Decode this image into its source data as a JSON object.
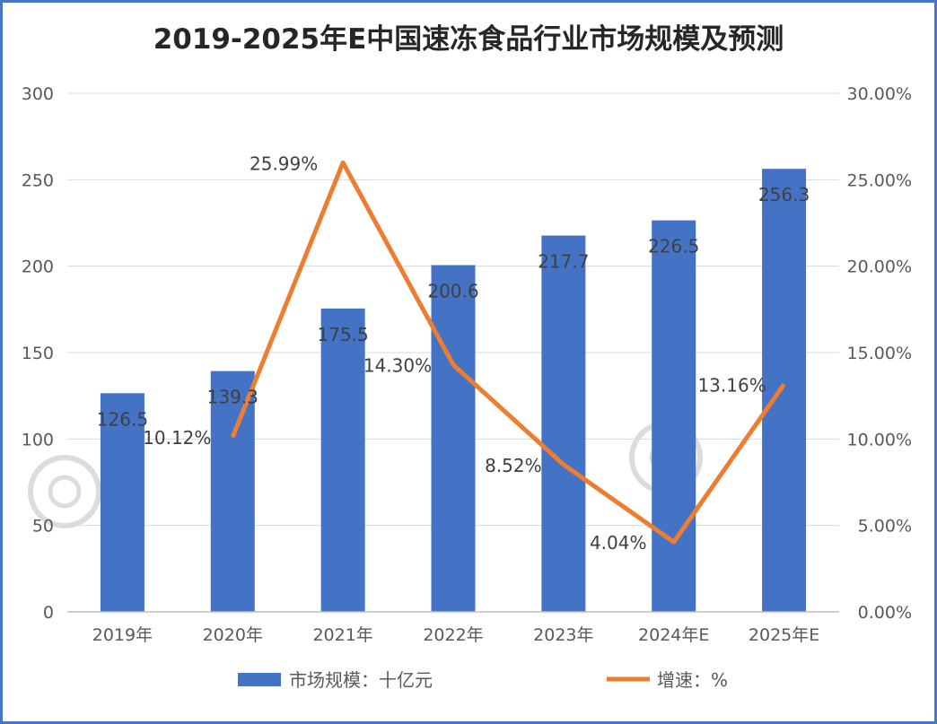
{
  "chart_data": {
    "type": "bar",
    "title": "2019-2025年E中国速冻食品行业市场规模及预测",
    "categories": [
      "2019年",
      "2020年",
      "2021年",
      "2022年",
      "2023年",
      "2024年E",
      "2025年E"
    ],
    "series": [
      {
        "name": "市场规模：十亿元",
        "type": "bar",
        "axis": "left",
        "color": "#4472c4",
        "values": [
          126.5,
          139.3,
          175.5,
          200.6,
          217.7,
          226.5,
          256.3
        ],
        "labels": [
          "126.5",
          "139.3",
          "175.5",
          "200.6",
          "217.7",
          "226.5",
          "256.3"
        ]
      },
      {
        "name": "增速：%",
        "type": "line",
        "axis": "right",
        "color": "#ed7d31",
        "values": [
          null,
          10.12,
          25.99,
          14.3,
          8.52,
          4.04,
          13.16
        ],
        "labels": [
          "",
          "10.12%",
          "25.99%",
          "14.30%",
          "8.52%",
          "4.04%",
          "13.16%"
        ]
      }
    ],
    "y_left": {
      "min": 0,
      "max": 300,
      "ticks": [
        "0",
        "50",
        "100",
        "150",
        "200",
        "250",
        "300"
      ]
    },
    "y_right": {
      "min": 0,
      "max": 30,
      "ticks": [
        "0.00%",
        "5.00%",
        "10.00%",
        "15.00%",
        "20.00%",
        "25.00%",
        "30.00%"
      ]
    },
    "grid": true,
    "legend_position": "bottom"
  },
  "colors": {
    "border": "#4a74c7",
    "bar": "#4472c4",
    "line": "#ed7d31",
    "grid": "#d9d9d9"
  }
}
